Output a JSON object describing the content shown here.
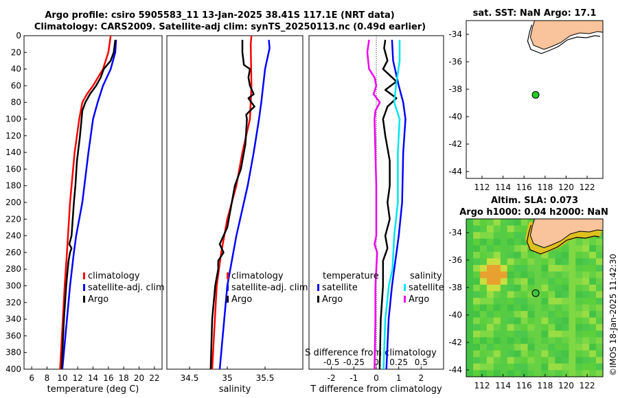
{
  "header": {
    "title_line1": "Argo profile: csiro 5905583_11 13-Jan-2025 38.41S 117.1E (NRT data)",
    "title_line2": "Climatology: CARS2009. Satellite-adj clim: synTS_20250113.nc (0.49d earlier)"
  },
  "copyright": "©IMOS 18-Jan-2025 11:42:30",
  "colors": {
    "climatology": "#ff0000",
    "satellite": "#0000ff",
    "argo": "#000000",
    "s_satellite": "#00e5ee",
    "s_argo": "#ee00ee",
    "land": "#f9c39b",
    "float_marker": "#22cc22"
  },
  "chart_data": [
    {
      "id": "temperature",
      "type": "line",
      "xlabel": "temperature (deg C)",
      "ylabel": "",
      "xlim": [
        5,
        23
      ],
      "ylim": [
        400,
        0
      ],
      "xticks": [
        6,
        8,
        10,
        12,
        14,
        16,
        18,
        20,
        22
      ],
      "yticks": [
        0,
        20,
        40,
        60,
        80,
        100,
        120,
        140,
        160,
        180,
        200,
        220,
        240,
        260,
        280,
        300,
        320,
        340,
        360,
        380,
        400
      ],
      "legend": {
        "position": "lower-right",
        "labels": [
          "climatology",
          "satellite-adj. clim",
          "Argo"
        ]
      },
      "series": [
        {
          "name": "climatology",
          "color": "#ff0000",
          "depth": [
            0,
            20,
            40,
            60,
            70,
            80,
            100,
            140,
            200,
            260,
            300,
            400
          ],
          "values": [
            16.3,
            16.0,
            15.3,
            14.0,
            13.2,
            12.6,
            12.2,
            11.6,
            11.0,
            10.6,
            10.3,
            9.7
          ]
        },
        {
          "name": "satellite-adj. clim",
          "color": "#0000ff",
          "depth": [
            5,
            20,
            40,
            60,
            80,
            100,
            140,
            200,
            240,
            260,
            300,
            400
          ],
          "values": [
            17.0,
            16.9,
            16.3,
            15.3,
            14.6,
            14.0,
            13.4,
            12.6,
            11.8,
            11.5,
            11.0,
            10.0
          ]
        },
        {
          "name": "Argo",
          "color": "#000000",
          "depth": [
            5,
            20,
            30,
            40,
            50,
            60,
            70,
            80,
            90,
            100,
            120,
            150,
            180,
            200,
            240,
            250,
            255,
            260,
            270,
            290,
            300,
            340,
            400
          ],
          "values": [
            16.9,
            16.7,
            16.3,
            15.4,
            15.0,
            14.4,
            13.6,
            13.0,
            12.6,
            12.5,
            12.3,
            11.9,
            11.7,
            11.5,
            11.2,
            10.9,
            11.2,
            11.0,
            10.8,
            10.6,
            10.5,
            10.2,
            9.9
          ]
        }
      ]
    },
    {
      "id": "salinity",
      "type": "line",
      "xlabel": "salinity",
      "ylabel": "",
      "xlim": [
        34.2,
        36.0
      ],
      "ylim": [
        400,
        0
      ],
      "xticks": [
        34.5,
        35,
        35.5
      ],
      "legend": {
        "position": "lower-right",
        "labels": [
          "climatology",
          "satellite-adj. clim",
          "Argo"
        ]
      },
      "series": [
        {
          "name": "climatology",
          "color": "#ff0000",
          "depth": [
            0,
            10,
            60,
            100,
            140,
            180,
            220,
            260,
            300,
            400
          ],
          "values": [
            35.32,
            35.31,
            35.32,
            35.3,
            35.2,
            35.12,
            35.0,
            34.92,
            34.86,
            34.8
          ]
        },
        {
          "name": "satellite-adj. clim",
          "color": "#0000ff",
          "depth": [
            5,
            15,
            40,
            80,
            100,
            140,
            180,
            200,
            240,
            300,
            400
          ],
          "values": [
            35.55,
            35.56,
            35.5,
            35.45,
            35.42,
            35.35,
            35.27,
            35.22,
            35.12,
            35.0,
            34.9
          ]
        },
        {
          "name": "Argo",
          "color": "#000000",
          "depth": [
            5,
            20,
            35,
            40,
            50,
            60,
            70,
            75,
            80,
            85,
            90,
            95,
            100,
            130,
            160,
            180,
            200,
            230,
            250,
            260,
            270,
            280,
            300,
            340,
            400
          ],
          "values": [
            35.2,
            35.2,
            35.22,
            35.3,
            35.28,
            35.3,
            35.35,
            35.28,
            35.32,
            35.36,
            35.3,
            35.25,
            35.26,
            35.24,
            35.18,
            35.1,
            35.06,
            35.0,
            34.9,
            34.95,
            34.88,
            34.88,
            34.84,
            34.8,
            34.78
          ]
        }
      ]
    },
    {
      "id": "differences",
      "type": "line",
      "xlabel": "T difference from climatology",
      "top_axis_label": "S difference from climatology",
      "xlim": [
        -3,
        3
      ],
      "ylim": [
        400,
        0
      ],
      "xticks": [
        -2,
        -1,
        0,
        1,
        2
      ],
      "top_ticks": [
        -0.5,
        -0.25,
        0,
        0.25,
        0.5
      ],
      "legend": {
        "position": "lower",
        "temperature_title": "temperature",
        "salinity_title": "salinity",
        "temperature_labels": [
          "satellite",
          "Argo"
        ],
        "salinity_labels": [
          "satellite",
          "Argo"
        ]
      },
      "series": [
        {
          "name": "T satellite",
          "color": "#0000ff",
          "depth": [
            5,
            30,
            60,
            80,
            100,
            140,
            200,
            240,
            260,
            300,
            340,
            400
          ],
          "values": [
            0.7,
            0.75,
            1.0,
            1.2,
            1.3,
            1.2,
            1.15,
            1.0,
            0.9,
            0.7,
            0.55,
            0.45
          ]
        },
        {
          "name": "T Argo",
          "color": "#000000",
          "depth": [
            5,
            15,
            30,
            40,
            55,
            65,
            75,
            85,
            100,
            120,
            150,
            180,
            200,
            220,
            240,
            255,
            270,
            300,
            340,
            400
          ],
          "values": [
            0.4,
            0.35,
            0.5,
            0.3,
            0.9,
            0.4,
            0.9,
            0.5,
            0.3,
            0.4,
            0.6,
            0.6,
            0.5,
            0.6,
            0.4,
            0.5,
            0.3,
            0.3,
            0.2,
            0.15
          ]
        },
        {
          "name": "S satellite",
          "color": "#00e5ee",
          "depth": [
            5,
            30,
            60,
            80,
            100,
            140,
            200,
            240,
            280,
            300,
            340,
            400
          ],
          "values": [
            0.26,
            0.26,
            0.22,
            0.2,
            0.26,
            0.24,
            0.24,
            0.2,
            0.18,
            0.14,
            0.1,
            0.08
          ]
        },
        {
          "name": "S Argo",
          "color": "#ee00ee",
          "depth": [
            5,
            20,
            40,
            50,
            60,
            70,
            80,
            90,
            100,
            140,
            180,
            200,
            240,
            250,
            260,
            280,
            300,
            340,
            400
          ],
          "values": [
            -0.08,
            -0.1,
            -0.08,
            -0.02,
            0.0,
            -0.03,
            0.04,
            -0.01,
            -0.02,
            -0.01,
            0.0,
            0.0,
            0.0,
            -0.02,
            0.01,
            0.0,
            -0.01,
            -0.01,
            -0.02
          ]
        }
      ]
    },
    {
      "id": "sst_map",
      "type": "scatter",
      "title": "sat. SST: NaN Argo: 17.1",
      "xlim": [
        110.5,
        123.5
      ],
      "ylim": [
        -44.5,
        -33
      ],
      "xticks": [
        112,
        114,
        116,
        118,
        120,
        122
      ],
      "yticks": [
        -34,
        -36,
        -38,
        -40,
        -42,
        -44
      ],
      "float_position": {
        "lon": 117.1,
        "lat": -38.41
      }
    },
    {
      "id": "sla_map",
      "type": "heatmap",
      "title_line1": "Altim. SLA: 0.073",
      "title_line2": "Argo h1000: 0.04 h2000: NaN",
      "xlim": [
        110.5,
        123.5
      ],
      "ylim": [
        -44.5,
        -33
      ],
      "xticks": [
        112,
        114,
        116,
        118,
        120,
        122
      ],
      "yticks": [
        -34,
        -36,
        -38,
        -40,
        -42,
        -44
      ],
      "float_position": {
        "lon": 117.1,
        "lat": -38.41
      }
    }
  ]
}
